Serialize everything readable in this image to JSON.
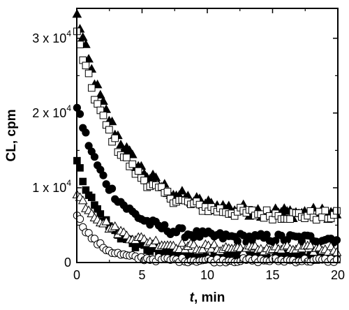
{
  "chart_data": {
    "type": "scatter",
    "title": "",
    "xlabel_italic": "t",
    "xlabel_rest": ", min",
    "ylabel": "CL, cpm",
    "xlim": [
      0,
      20
    ],
    "ylim": [
      0,
      34000
    ],
    "xticks": [
      0,
      5,
      10,
      15,
      20
    ],
    "xtick_labels": [
      "0",
      "5",
      "10",
      "15",
      "20"
    ],
    "yticks": [
      0,
      10000,
      20000,
      30000
    ],
    "ytick_labels": [
      {
        "mant": "0",
        "base": "",
        "exp": ""
      },
      {
        "mant": "1",
        "base": " x 10",
        "exp": "4"
      },
      {
        "mant": "2",
        "base": " x 10",
        "exp": "4"
      },
      {
        "mant": "3",
        "base": " x 10",
        "exp": "4"
      }
    ],
    "grid": false,
    "legend": "none",
    "series": [
      {
        "marker": "triangle-filled",
        "color": "#000000",
        "count": 90,
        "y0": 33000,
        "amp": 27000,
        "tau": 3.3,
        "plateau": 6500,
        "noise": 800
      },
      {
        "marker": "square-open",
        "color": "#000000",
        "count": 90,
        "y0": 30500,
        "amp": 24500,
        "tau": 3.2,
        "plateau": 6200,
        "noise": 700
      },
      {
        "marker": "circle-filled",
        "color": "#000000",
        "count": 90,
        "y0": 21000,
        "amp": 18000,
        "tau": 2.6,
        "plateau": 3200,
        "noise": 600
      },
      {
        "marker": "square-filled",
        "color": "#000000",
        "count": 90,
        "y0": 13500,
        "amp": 12800,
        "tau": 2.2,
        "plateau": 800,
        "noise": 500
      },
      {
        "marker": "triangle-open",
        "color": "#000000",
        "count": 90,
        "y0": 9000,
        "amp": 7500,
        "tau": 2.8,
        "plateau": 1800,
        "noise": 500
      },
      {
        "marker": "circle-open",
        "color": "#000000",
        "count": 90,
        "y0": 6500,
        "amp": 6200,
        "tau": 1.6,
        "plateau": 300,
        "noise": 300
      }
    ]
  }
}
